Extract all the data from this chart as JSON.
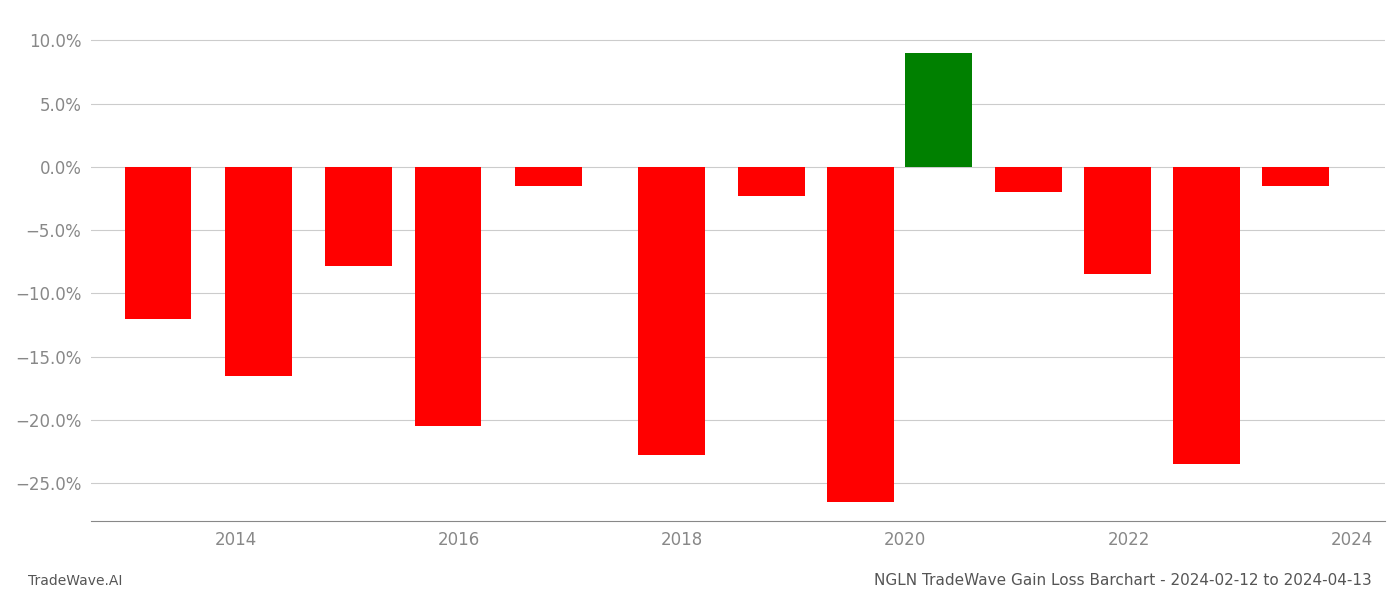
{
  "x_positions": [
    2013.3,
    2014.2,
    2015.1,
    2015.9,
    2016.8,
    2017.9,
    2018.8,
    2019.6,
    2020.3,
    2021.1,
    2021.9,
    2022.7,
    2023.5
  ],
  "values": [
    -0.12,
    -0.165,
    -0.078,
    -0.205,
    -0.015,
    -0.228,
    -0.023,
    -0.265,
    0.09,
    -0.02,
    -0.085,
    -0.235,
    -0.015
  ],
  "colors": [
    "#ff0000",
    "#ff0000",
    "#ff0000",
    "#ff0000",
    "#ff0000",
    "#ff0000",
    "#ff0000",
    "#ff0000",
    "#008000",
    "#ff0000",
    "#ff0000",
    "#ff0000",
    "#ff0000"
  ],
  "bar_width": 0.6,
  "ylim": [
    -0.28,
    0.12
  ],
  "yticks": [
    -0.25,
    -0.2,
    -0.15,
    -0.1,
    -0.05,
    0.0,
    0.05,
    0.1
  ],
  "xticks": [
    2014,
    2016,
    2018,
    2020,
    2022,
    2024
  ],
  "xlim": [
    2012.7,
    2024.3
  ],
  "title": "NGLN TradeWave Gain Loss Barchart - 2024-02-12 to 2024-04-13",
  "footnote_left": "TradeWave.AI",
  "background_color": "#ffffff",
  "grid_color": "#cccccc",
  "axis_color": "#888888",
  "text_color": "#555555",
  "title_color": "#555555",
  "title_fontsize": 11,
  "footnote_fontsize": 10
}
